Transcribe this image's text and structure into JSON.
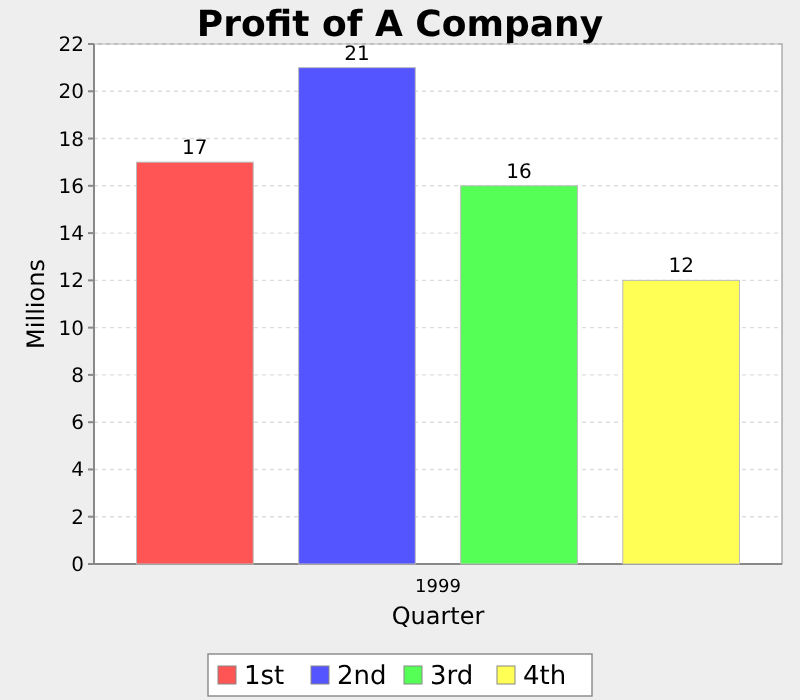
{
  "chart_data": {
    "type": "bar",
    "title": "Profit of A Company",
    "xlabel": "Quarter",
    "ylabel": "Millions",
    "categories": [
      "1999"
    ],
    "series": [
      {
        "name": "1st",
        "color": "#ff5555",
        "values": [
          17
        ]
      },
      {
        "name": "2nd",
        "color": "#5555ff",
        "values": [
          21
        ]
      },
      {
        "name": "3rd",
        "color": "#55ff55",
        "values": [
          16
        ]
      },
      {
        "name": "4th",
        "color": "#ffff55",
        "values": [
          12
        ]
      }
    ],
    "ylim": [
      0,
      22
    ],
    "yticks": [
      0,
      2,
      4,
      6,
      8,
      10,
      12,
      14,
      16,
      18,
      20,
      22
    ],
    "grid": "y",
    "legend": "bottom",
    "data_labels": true
  }
}
